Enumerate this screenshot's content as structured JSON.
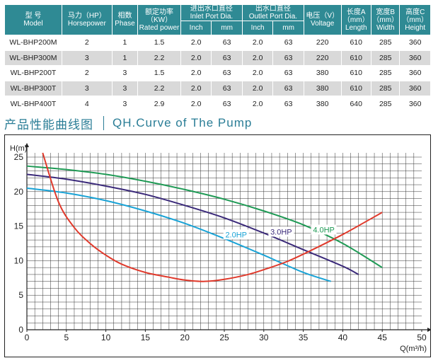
{
  "table": {
    "headers": {
      "model": {
        "zh": "型 号",
        "en": "Model"
      },
      "horsepower": {
        "zh": "马力（HP）",
        "en": "Horsepower"
      },
      "phase": {
        "zh": "相数",
        "en": "Phase"
      },
      "power": {
        "zh": "额定功率",
        "en1": "（KW）",
        "en2": "Rated power"
      },
      "inlet": {
        "zh": "进出水口直径",
        "en": "Inlet Port Dia."
      },
      "outlet": {
        "zh": "出水口直径",
        "en": "Outlet Port Dia."
      },
      "voltage": {
        "zh": "电压（V）",
        "en": "Voltage"
      },
      "length": {
        "zh": "长度A",
        "en1": "（mm）",
        "en2": "Length"
      },
      "width": {
        "zh": "宽度B",
        "en1": "（mm）",
        "en2": "Width"
      },
      "height": {
        "zh": "高度C",
        "en1": "（mm）",
        "en2": "Height"
      },
      "inch": "Inch",
      "mm": "mm"
    },
    "rows": [
      {
        "model": "WL-BHP200M",
        "hp": "2",
        "phase": "1",
        "kw": "1.5",
        "in_inch": "2.0",
        "in_mm": "63",
        "out_inch": "2.0",
        "out_mm": "63",
        "voltage": "220",
        "length": "610",
        "width": "285",
        "height": "360"
      },
      {
        "model": "WL-BHP300M",
        "hp": "3",
        "phase": "1",
        "kw": "2.2",
        "in_inch": "2.0",
        "in_mm": "63",
        "out_inch": "2.0",
        "out_mm": "63",
        "voltage": "220",
        "length": "610",
        "width": "285",
        "height": "360"
      },
      {
        "model": "WL-BHP200T",
        "hp": "2",
        "phase": "3",
        "kw": "1.5",
        "in_inch": "2.0",
        "in_mm": "63",
        "out_inch": "2.0",
        "out_mm": "63",
        "voltage": "380",
        "length": "610",
        "width": "285",
        "height": "360"
      },
      {
        "model": "WL-BHP300T",
        "hp": "3",
        "phase": "3",
        "kw": "2.2",
        "in_inch": "2.0",
        "in_mm": "63",
        "out_inch": "2.0",
        "out_mm": "63",
        "voltage": "380",
        "length": "610",
        "width": "285",
        "height": "360"
      },
      {
        "model": "WL-BHP400T",
        "hp": "4",
        "phase": "3",
        "kw": "2.9",
        "in_inch": "2.0",
        "in_mm": "63",
        "out_inch": "2.0",
        "out_mm": "63",
        "voltage": "380",
        "length": "640",
        "width": "285",
        "height": "360"
      }
    ]
  },
  "section_title": {
    "zh": "产品性能曲线图",
    "en": "QH.Curve of The Pump"
  },
  "colors": {
    "header_bg": "#2f8a94",
    "title": "#2a7d96",
    "hp2": "#1aa3d6",
    "hp3": "#3b2a7a",
    "hp4": "#1f9a55",
    "efficiency": "#e03a2c"
  },
  "chart_data": {
    "type": "line",
    "ylabel": "H(m)",
    "xlabel": "Q(m³/h)",
    "xlim": [
      0,
      50
    ],
    "ylim": [
      0,
      25
    ],
    "xticks": [
      0,
      5,
      10,
      15,
      20,
      25,
      30,
      35,
      40,
      45,
      50
    ],
    "yticks": [
      0,
      5,
      10,
      15,
      20,
      25
    ],
    "grid": true,
    "series": [
      {
        "name": "2.0HP",
        "color": "#1aa3d6",
        "x": [
          0,
          5,
          10,
          15,
          20,
          25,
          30,
          35,
          38.5
        ],
        "y": [
          20.5,
          19.8,
          18.7,
          17.2,
          15.4,
          13.2,
          10.8,
          8.3,
          7.0
        ]
      },
      {
        "name": "3.0HP",
        "color": "#3b2a7a",
        "x": [
          0,
          5,
          10,
          15,
          20,
          25,
          30,
          35,
          40,
          42
        ],
        "y": [
          22.5,
          21.8,
          20.8,
          19.6,
          18.0,
          16.2,
          14.0,
          11.6,
          9.2,
          8.0
        ]
      },
      {
        "name": "4.0HP",
        "color": "#1f9a55",
        "x": [
          0,
          5,
          10,
          15,
          20,
          25,
          30,
          35,
          40,
          45
        ],
        "y": [
          23.7,
          23.2,
          22.5,
          21.5,
          20.3,
          18.9,
          17.2,
          15.2,
          12.5,
          9.0
        ]
      },
      {
        "name": "",
        "color": "#e03a2c",
        "x": [
          2,
          4,
          6,
          8,
          10,
          12,
          15,
          18,
          20,
          22.5,
          25,
          28,
          30,
          33,
          36,
          40,
          45
        ],
        "y": [
          26,
          18.5,
          14.8,
          12.5,
          10.8,
          9.5,
          8.3,
          7.6,
          7.2,
          7.0,
          7.3,
          8.0,
          8.7,
          9.9,
          11.5,
          13.8,
          17.0
        ]
      }
    ],
    "labels": [
      {
        "text": "2.0HP",
        "series": 0
      },
      {
        "text": "3.0HP",
        "series": 1
      },
      {
        "text": "4.0HP",
        "series": 2
      }
    ]
  }
}
